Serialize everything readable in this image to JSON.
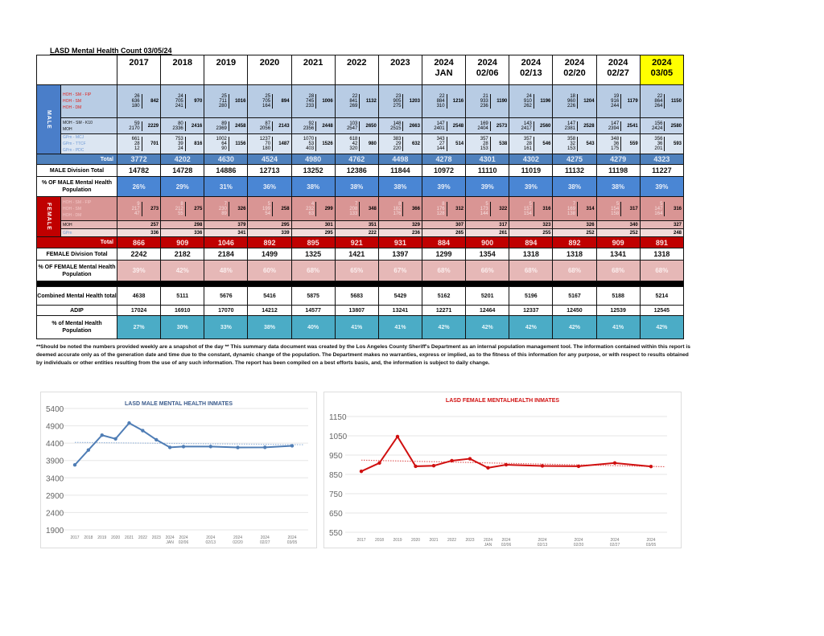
{
  "title": "LASD Mental Health Count 03/05/24",
  "columns": [
    {
      "l1": "2017",
      "l2": ""
    },
    {
      "l1": "2018",
      "l2": ""
    },
    {
      "l1": "2019",
      "l2": ""
    },
    {
      "l1": "2020",
      "l2": ""
    },
    {
      "l1": "2021",
      "l2": ""
    },
    {
      "l1": "2022",
      "l2": ""
    },
    {
      "l1": "2023",
      "l2": ""
    },
    {
      "l1": "2024",
      "l2": "JAN"
    },
    {
      "l1": "2024",
      "l2": "02/06"
    },
    {
      "l1": "2024",
      "l2": "02/13"
    },
    {
      "l1": "2024",
      "l2": "02/20"
    },
    {
      "l1": "2024",
      "l2": "02/27"
    },
    {
      "l1": "2024",
      "l2": "03/05"
    }
  ],
  "colors": {
    "male_band": "#4a7ec9",
    "male_total": "#4f81bd",
    "female_band": "#c00000",
    "female_sub": "#d99594",
    "teal": "#4bacc6",
    "highlight": "#ffff00"
  },
  "male": {
    "label": "MALE",
    "hoh": {
      "labels": [
        "HOH - SM - FIP",
        "HOH - SM",
        "HOH - DM"
      ],
      "a": [
        26,
        24,
        25,
        25,
        28,
        22,
        23,
        22,
        21,
        24,
        18,
        19,
        22
      ],
      "b": [
        636,
        705,
        711,
        705,
        745,
        841,
        905,
        884,
        933,
        910,
        960,
        916,
        864
      ],
      "c": [
        180,
        241,
        280,
        164,
        233,
        269,
        275,
        310,
        236,
        262,
        226,
        244,
        264
      ],
      "subtotal": [
        842,
        970,
        1016,
        894,
        1006,
        1132,
        1203,
        1216,
        1190,
        1196,
        1204,
        1179,
        1150
      ]
    },
    "moh": {
      "labels": [
        "MOH - SM - K10",
        "MOH"
      ],
      "a": [
        59,
        80,
        89,
        87,
        92,
        103,
        148,
        147,
        169,
        143,
        147,
        147,
        156
      ],
      "b": [
        2170,
        2336,
        2369,
        2056,
        2356,
        2547,
        2515,
        2401,
        2404,
        2417,
        2381,
        2394,
        2424
      ],
      "subtotal": [
        2229,
        2416,
        2458,
        2143,
        2448,
        2650,
        2663,
        2548,
        2573,
        2560,
        2528,
        2541,
        2580
      ]
    },
    "gpm": {
      "labels": [
        "GPm - MCJ",
        "GPm - TTCF",
        "GPm - PDC"
      ],
      "a": [
        661,
        753,
        1002,
        1237,
        1070,
        618,
        383,
        343,
        357,
        357,
        358,
        348,
        356
      ],
      "b": [
        28,
        39,
        64,
        70,
        53,
        42,
        29,
        27,
        28,
        28,
        32,
        36,
        36
      ],
      "c": [
        12,
        24,
        90,
        180,
        403,
        320,
        220,
        144,
        153,
        161,
        153,
        175,
        201
      ],
      "subtotal": [
        701,
        816,
        1156,
        1487,
        1526,
        980,
        632,
        514,
        538,
        546,
        543,
        559,
        593
      ]
    },
    "total_label": "Total",
    "total": [
      3772,
      4202,
      4630,
      4524,
      4980,
      4762,
      4498,
      4278,
      4301,
      4302,
      4275,
      4279,
      4323
    ],
    "division_label": "MALE Division Total",
    "division": [
      14782,
      14728,
      14886,
      12713,
      13252,
      12386,
      11844,
      10972,
      11110,
      11019,
      11132,
      11198,
      11227
    ],
    "pct_label": "% OF MALE Mental Health Population",
    "pct": [
      "26%",
      "29%",
      "31%",
      "36%",
      "38%",
      "38%",
      "38%",
      "39%",
      "39%",
      "39%",
      "38%",
      "38%",
      "39%"
    ]
  },
  "female": {
    "label": "FEMALE",
    "hoh": {
      "labels": [
        "HOH - SM - FIP",
        "HOH - SM",
        "HOH - DM"
      ],
      "a": [
        9,
        8,
        7,
        5,
        4,
        7,
        8,
        8,
        5,
        5,
        7,
        5,
        5
      ],
      "b": [
        217,
        212,
        230,
        199,
        232,
        208,
        182,
        176,
        173,
        157,
        169,
        154,
        147
      ],
      "c": [
        47,
        55,
        89,
        54,
        63,
        133,
        176,
        128,
        144,
        154,
        138,
        158,
        164
      ],
      "subtotal": [
        273,
        275,
        326,
        258,
        299,
        348,
        366,
        312,
        322,
        316,
        314,
        317,
        316
      ]
    },
    "moh": {
      "label": "MOH",
      "values": [
        257,
        298,
        379,
        295,
        301,
        351,
        329,
        307,
        317,
        323,
        326,
        340,
        327
      ]
    },
    "gpm": {
      "label": "GPm",
      "values": [
        336,
        336,
        341,
        339,
        295,
        222,
        236,
        265,
        261,
        255,
        252,
        252,
        248
      ]
    },
    "total_label": "Total",
    "total": [
      866,
      909,
      1046,
      892,
      895,
      921,
      931,
      884,
      900,
      894,
      892,
      909,
      891
    ],
    "division_label": "FEMALE Division Total",
    "division": [
      2242,
      2182,
      2184,
      1499,
      1325,
      1421,
      1397,
      1299,
      1354,
      1318,
      1318,
      1341,
      1318
    ],
    "pct_label": "% OF FEMALE Mental Health Population",
    "pct": [
      "39%",
      "42%",
      "48%",
      "60%",
      "68%",
      "65%",
      "67%",
      "68%",
      "66%",
      "68%",
      "68%",
      "68%",
      "68%"
    ]
  },
  "combined": {
    "label": "Combined Mental Health total",
    "values": [
      4638,
      5111,
      5676,
      5416,
      5875,
      5683,
      5429,
      5162,
      5201,
      5196,
      5167,
      5188,
      5214
    ]
  },
  "adp": {
    "label": "ADIP",
    "values": [
      17024,
      16910,
      17070,
      14212,
      14577,
      13807,
      13241,
      12271,
      12464,
      12337,
      12450,
      12539,
      12545
    ]
  },
  "pct_total": {
    "label": "% of Mental Health Population",
    "values": [
      "27%",
      "30%",
      "33%",
      "38%",
      "40%",
      "41%",
      "41%",
      "42%",
      "42%",
      "42%",
      "42%",
      "41%",
      "42%"
    ]
  },
  "note": "**Should be noted the numbers provided weekly are a snapshot of the day ** This summary data document was created by the Los Angeles County Sheriff's Department as an internal population management tool. The information contained within this report is deemed accurate only as of the generation date and time due to the constant, dynamic change of the population. The Department makes no warranties, express or implied, as to the fitness of this information for any purpose, or with respect to results obtained by individuals or other entities resulting from the use of any such information. The report has been compiled on a best efforts basis, and, the information is subject to daily change.",
  "chart_data": [
    {
      "type": "line",
      "title": "LASD MALE MENTAL HEALTH INMATES",
      "categories": [
        "2017",
        "2018",
        "2019",
        "2020",
        "2021",
        "2022",
        "2023",
        "2024 JAN",
        "2024 02/06",
        "2024 02/13",
        "2024 02/20",
        "2024 02/27",
        "2024 03/05"
      ],
      "values": [
        3772,
        4202,
        4630,
        4524,
        4980,
        4762,
        4498,
        4278,
        4301,
        4302,
        4275,
        4279,
        4323
      ],
      "yticks": [
        1900,
        2400,
        2900,
        3400,
        3900,
        4400,
        4900,
        5400
      ],
      "ylim": [
        1900,
        5400
      ],
      "trendline": "linear",
      "grid": true,
      "color": "#4f7db5"
    },
    {
      "type": "line",
      "title": "LASD FEMALE MENTALHEALTH INMATES",
      "categories": [
        "2017",
        "2018",
        "2019",
        "2020",
        "2021",
        "2022",
        "2023",
        "2024 JAN",
        "2024 02/06",
        "2024 02/13",
        "2024 02/20",
        "2024 02/27",
        "2024 03/05"
      ],
      "values": [
        866,
        909,
        1046,
        892,
        895,
        921,
        931,
        884,
        900,
        894,
        892,
        909,
        891
      ],
      "yticks": [
        550,
        650,
        750,
        850,
        950,
        1050,
        1150
      ],
      "ylim": [
        550,
        1150
      ],
      "trendline": "linear",
      "grid": true,
      "color": "#d01010"
    }
  ]
}
